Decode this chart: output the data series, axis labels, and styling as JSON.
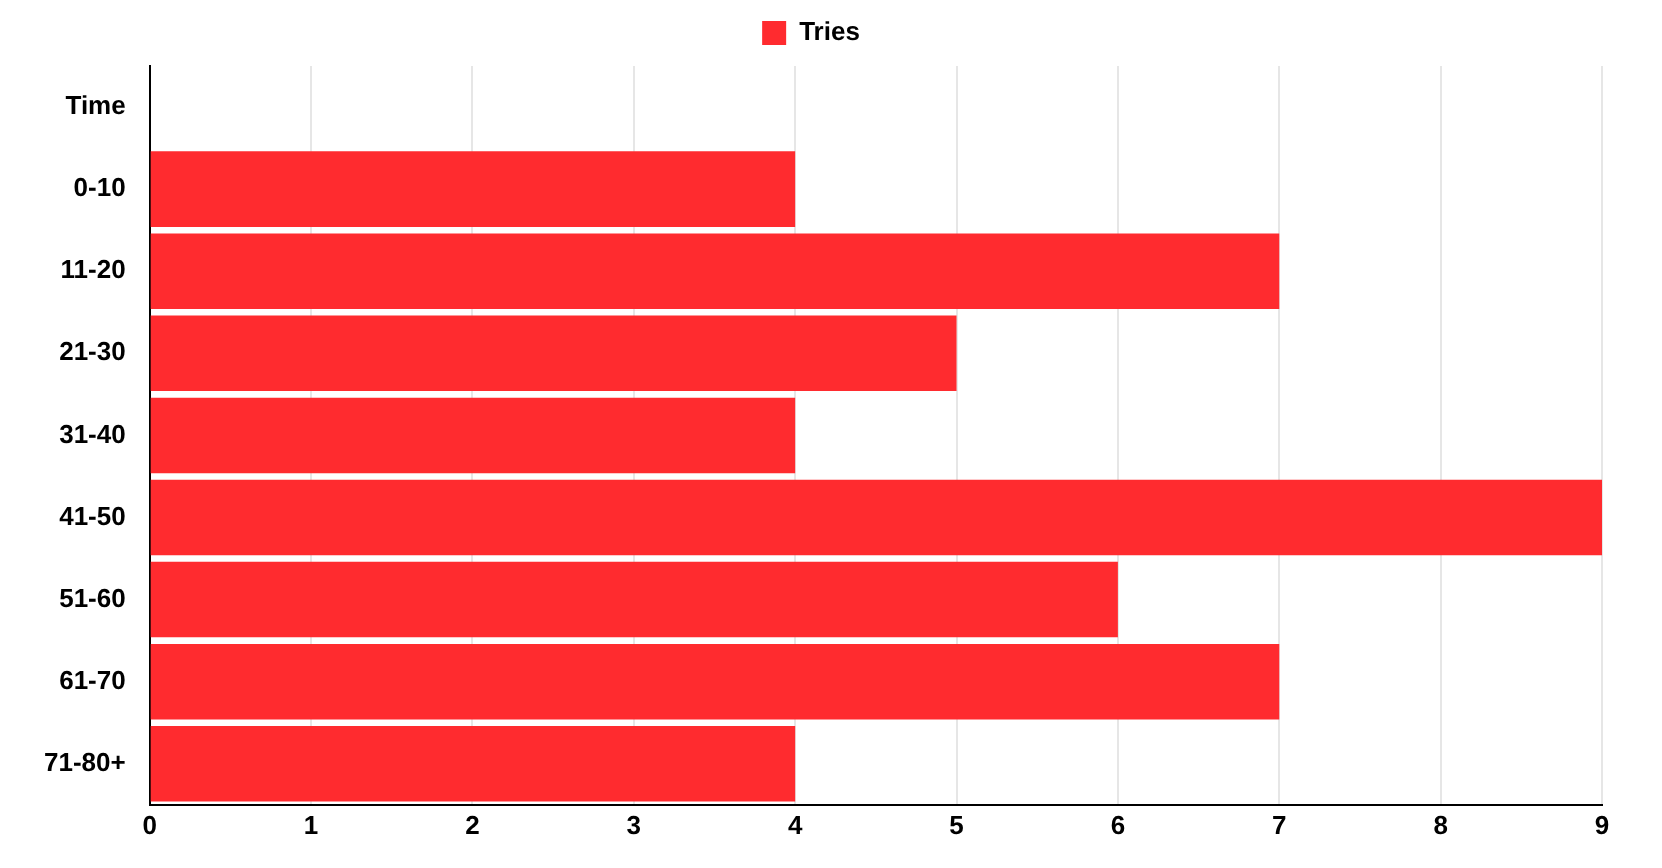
{
  "chart_data": {
    "type": "bar",
    "orientation": "horizontal",
    "categories": [
      "Time",
      "0-10",
      "11-20",
      "21-30",
      "31-40",
      "41-50",
      "51-60",
      "61-70",
      "71-80+"
    ],
    "series": [
      {
        "name": "Tries",
        "color": "#ff2b2f",
        "values": [
          null,
          4,
          7,
          5,
          4,
          9,
          6,
          7,
          4
        ]
      }
    ],
    "xlim": [
      0,
      9
    ],
    "xticks": [
      0,
      1,
      2,
      3,
      4,
      5,
      6,
      7,
      8,
      9
    ],
    "grid": "x",
    "legend": "top"
  }
}
